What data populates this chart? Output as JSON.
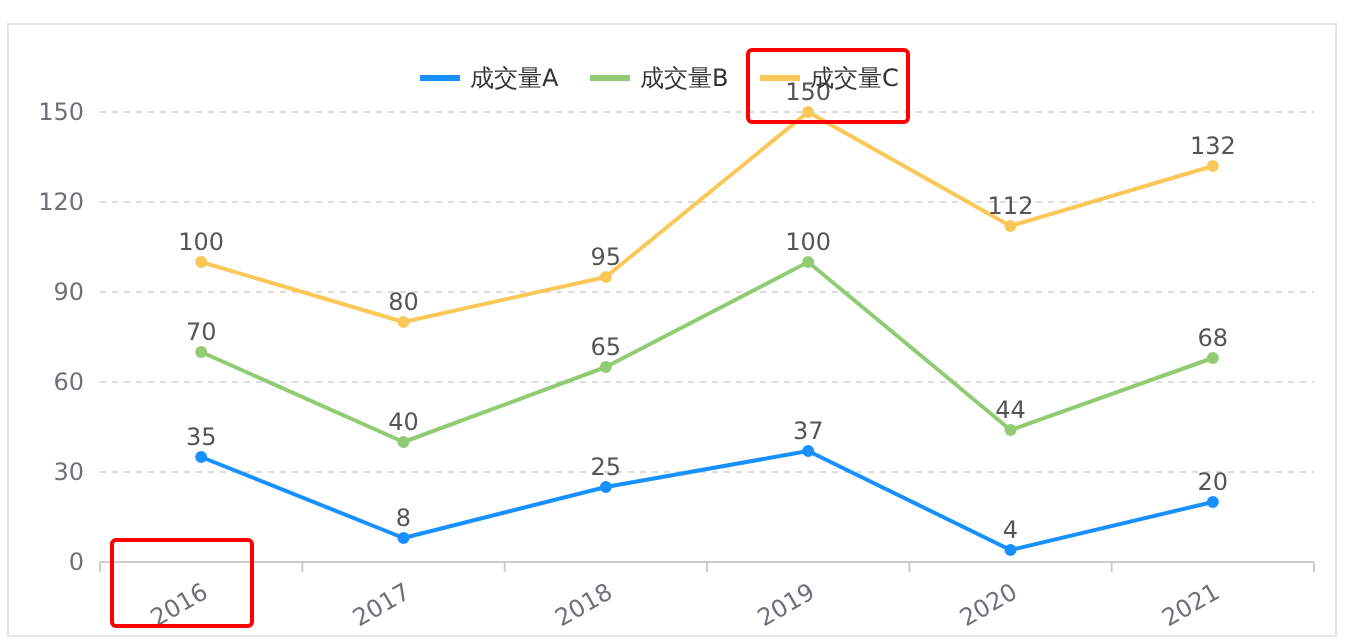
{
  "chart_data": {
    "type": "line",
    "categories": [
      "2016",
      "2017",
      "2018",
      "2019",
      "2020",
      "2021"
    ],
    "series": [
      {
        "name": "成交量A",
        "color": "#1890ff",
        "values": [
          35,
          8,
          25,
          37,
          4,
          20
        ]
      },
      {
        "name": "成交量B",
        "color": "#91cc75",
        "values": [
          70,
          40,
          65,
          100,
          44,
          68
        ]
      },
      {
        "name": "成交量C",
        "color": "#fac858",
        "values": [
          100,
          80,
          95,
          150,
          112,
          132
        ]
      }
    ],
    "ylim": [
      0,
      150
    ],
    "yticks": [
      0,
      30,
      60,
      90,
      120,
      150
    ],
    "grid": "y",
    "legend": "top",
    "marker": "circle",
    "data_labels": true
  }
}
